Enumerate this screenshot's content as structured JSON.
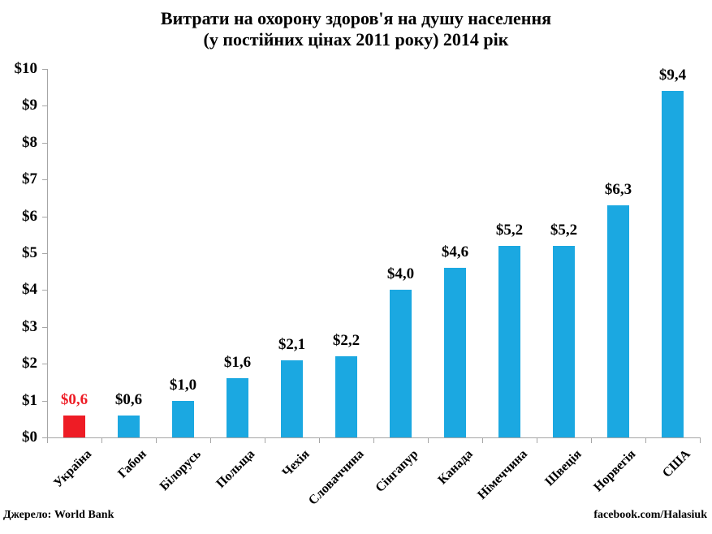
{
  "chart_data": {
    "type": "bar",
    "title": "Витрати на охорону здоров'я на душу населення (у постійних цінах 2011 року) 2014 рік",
    "title_lines": [
      "Витрати на охорону здоров'я на душу населення",
      "(у постійних цінах 2011 року) 2014 рік"
    ],
    "categories": [
      "Україна",
      "Габон",
      "Білорусь",
      "Польща",
      "Чехія",
      "Словаччина",
      "Сінгапур",
      "Канада",
      "Німеччина",
      "Швеція",
      "Норвегія",
      "США"
    ],
    "values": [
      0.6,
      0.6,
      1.0,
      1.6,
      2.1,
      2.2,
      4.0,
      4.6,
      5.2,
      5.2,
      6.3,
      9.4
    ],
    "data_labels": [
      "$0,6",
      "$0,6",
      "$1,0",
      "$1,6",
      "$2,1",
      "$2,2",
      "$4,0",
      "$4,6",
      "$5,2",
      "$5,2",
      "$6,3",
      "$9,4"
    ],
    "y_ticks": [
      "$10",
      "$9",
      "$8",
      "$7",
      "$6",
      "$5",
      "$4",
      "$3",
      "$2",
      "$1",
      "$0"
    ],
    "ylim": [
      0,
      10
    ],
    "xlabel": "",
    "ylabel": "",
    "grid": false,
    "legend": false,
    "bar_color": "#1BA8E1",
    "highlight_color": "#EE1C25",
    "highlight_index": 0,
    "axis_color": "#A6A6A6"
  },
  "footer": {
    "source": "Джерело: World Bank",
    "credit": "facebook.com/Halasiuk"
  }
}
